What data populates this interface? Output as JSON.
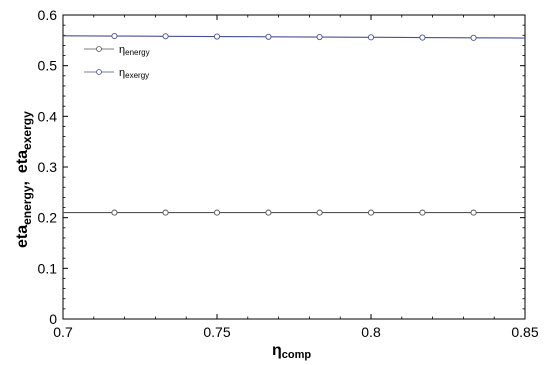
{
  "chart_data": {
    "type": "line",
    "title": "",
    "x_axis": {
      "label_main": "η",
      "label_sub": "comp",
      "range": [
        0.7,
        0.85
      ],
      "ticks": [
        0.7,
        0.75,
        0.8,
        0.85
      ],
      "tick_labels": [
        "0.7",
        "0.75",
        "0.8",
        "0.85"
      ]
    },
    "y_axis": {
      "label_part1_main": "eta",
      "label_part1_sub": "energy",
      "label_separator": ",",
      "label_part2_main": "eta",
      "label_part2_sub": "exergy",
      "range": [
        0,
        0.6
      ],
      "ticks": [
        0,
        0.1,
        0.2,
        0.3,
        0.4,
        0.5,
        0.6
      ],
      "tick_labels": [
        "0",
        "0.1",
        "0.2",
        "0.3",
        "0.4",
        "0.5",
        "0.6"
      ]
    },
    "grid": false,
    "legend": {
      "placement": "top-left",
      "entries": [
        {
          "main": "η",
          "sub": "energy",
          "color": "#555555"
        },
        {
          "main": "η",
          "sub": "exergy",
          "color": "#4b4f9a"
        }
      ]
    },
    "series": [
      {
        "name_main": "η",
        "name_sub": "energy",
        "color": "#555555",
        "marker": "open-circle",
        "x": [
          0.7,
          0.7167,
          0.7333,
          0.75,
          0.7667,
          0.7833,
          0.8,
          0.8167,
          0.8333,
          0.85
        ],
        "y": [
          0.21,
          0.21,
          0.21,
          0.21,
          0.21,
          0.21,
          0.21,
          0.21,
          0.21,
          0.21
        ],
        "marker_x": [
          0.7167,
          0.7333,
          0.75,
          0.7667,
          0.7833,
          0.8,
          0.8167,
          0.8333
        ]
      },
      {
        "name_main": "η",
        "name_sub": "exergy",
        "color": "#4b4f9a",
        "marker": "open-circle",
        "x": [
          0.7,
          0.7167,
          0.7333,
          0.75,
          0.7667,
          0.7833,
          0.8,
          0.8167,
          0.8333,
          0.85
        ],
        "y": [
          0.559,
          0.5585,
          0.558,
          0.5575,
          0.557,
          0.5565,
          0.556,
          0.5555,
          0.555,
          0.5545
        ],
        "marker_x": [
          0.7167,
          0.7333,
          0.75,
          0.7667,
          0.7833,
          0.8,
          0.8167,
          0.8333
        ]
      }
    ]
  }
}
